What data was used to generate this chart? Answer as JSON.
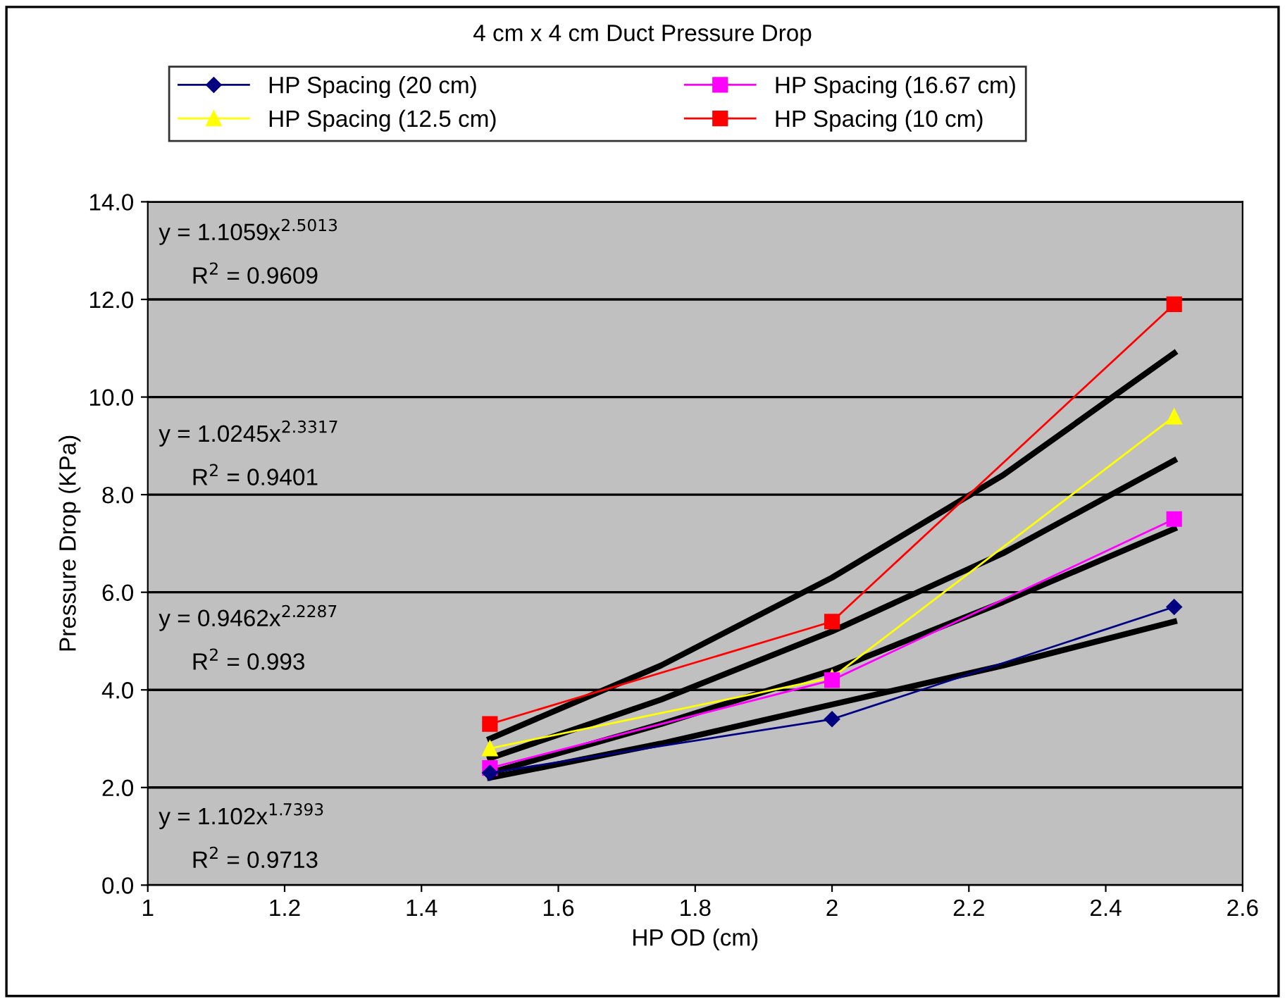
{
  "chart_data": {
    "type": "line",
    "title": "4 cm x 4 cm Duct Pressure Drop",
    "xlabel": "HP OD (cm)",
    "ylabel": "Pressure Drop (KPa)",
    "x": [
      1.5,
      2,
      2.5
    ],
    "series": [
      {
        "name": "HP Spacing (20 cm)",
        "color": "#000080",
        "marker": "diamond",
        "values": [
          2.3,
          3.4,
          5.7
        ]
      },
      {
        "name": "HP Spacing (16.67 cm)",
        "color": "#ff00ff",
        "marker": "square",
        "values": [
          2.4,
          4.2,
          7.5
        ]
      },
      {
        "name": "HP Spacing (12.5 cm)",
        "color": "#ffff00",
        "marker": "triangle",
        "values": [
          2.8,
          4.25,
          9.6
        ]
      },
      {
        "name": "HP Spacing (10 cm)",
        "color": "#ff0000",
        "marker": "square",
        "values": [
          3.3,
          5.4,
          11.9
        ]
      },
      {
        "type": "line",
        "color": "#000000",
        "marker": "none",
        "x": [
          1.5,
          1.75,
          2,
          2.25,
          2.5
        ],
        "values": [
          3.0,
          4.5,
          6.3,
          8.4,
          10.9
        ]
      },
      {
        "type": "line",
        "color": "#000000",
        "marker": "none",
        "x": [
          1.5,
          1.75,
          2,
          2.25,
          2.5
        ],
        "values": [
          2.6,
          3.8,
          5.2,
          6.8,
          8.7
        ]
      },
      {
        "type": "line",
        "color": "#000000",
        "marker": "none",
        "x": [
          1.5,
          1.75,
          2,
          2.25,
          2.5
        ],
        "values": [
          2.3,
          3.3,
          4.4,
          5.8,
          7.3
        ]
      },
      {
        "type": "line",
        "color": "#000000",
        "marker": "none",
        "x": [
          1.5,
          1.75,
          2,
          2.25,
          2.5
        ],
        "values": [
          2.2,
          2.9,
          3.7,
          4.5,
          5.4
        ]
      }
    ],
    "xlim": [
      1,
      2.6
    ],
    "xticks": [
      1,
      1.2,
      1.4,
      1.6,
      1.8,
      2,
      2.2,
      2.4,
      2.6
    ],
    "ylim": [
      0,
      14
    ],
    "yticks": [
      {
        "value": 0,
        "label": "0.0"
      },
      {
        "value": 2,
        "label": "2.0"
      },
      {
        "value": 4,
        "label": "4.0"
      },
      {
        "value": 6,
        "label": "6.0"
      },
      {
        "value": 8,
        "label": "8.0"
      },
      {
        "value": 10,
        "label": "10.0"
      },
      {
        "value": 12,
        "label": "12.0"
      },
      {
        "value": 14,
        "label": "14.0"
      }
    ],
    "grid": "y",
    "legend": "top",
    "line_style": "solid",
    "annotations": [
      "y = 1.1059x$^{2.5013}$",
      "R$^{2}$ = 0.9609",
      "y = 1.0245x$^{2.3317}$",
      "R$^{2}$ = 0.9401",
      "y = 0.9462x$^{2.2287}$",
      "R$^{2}$ = 0.993",
      "y = 1.102x$^{1.7393}$",
      "R$^{2}$ = 0.9713"
    ]
  }
}
